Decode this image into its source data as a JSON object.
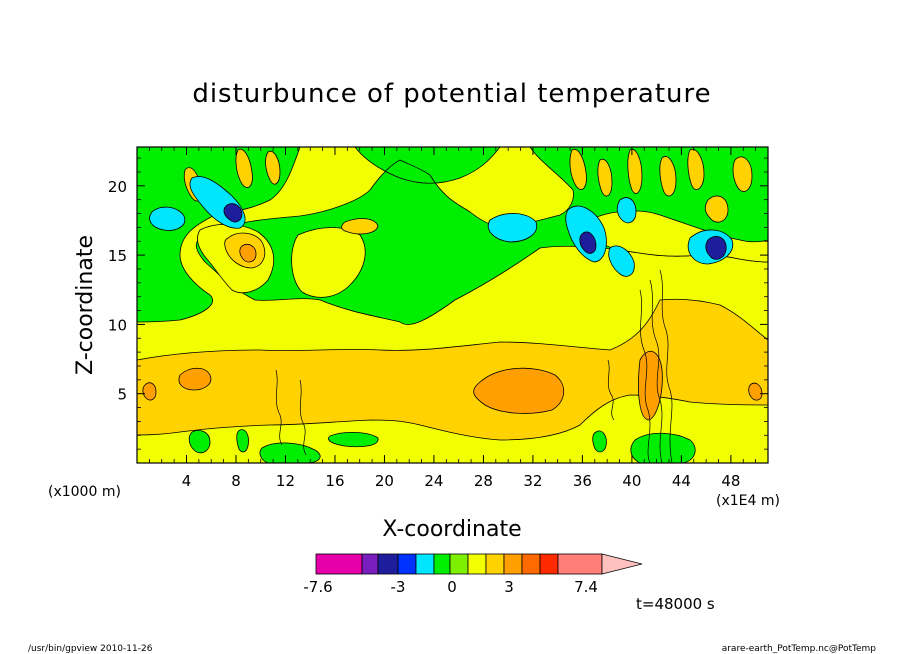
{
  "chart_data": {
    "type": "heatmap",
    "title": "disturbunce of potential temperature",
    "xlabel": "X-coordinate",
    "ylabel": "Z-coordinate",
    "x_units_left": "(x1000 m)",
    "x_units_right": "(x1E4 m)",
    "xlim": [
      0,
      51
    ],
    "ylim": [
      0,
      22.8
    ],
    "xticks": [
      "4",
      "8",
      "12",
      "16",
      "20",
      "24",
      "28",
      "32",
      "36",
      "40",
      "44",
      "48"
    ],
    "yticks": [
      "5",
      "10",
      "15",
      "20"
    ],
    "colorbar": {
      "tick_labels": [
        "-7.6",
        "-3",
        "0",
        "3",
        "7.4"
      ],
      "colors": [
        "#e600aa",
        "#7a1fbf",
        "#1e1e9c",
        "#0032ff",
        "#00e6ff",
        "#00ee00",
        "#7cf000",
        "#f2ff00",
        "#ffd200",
        "#ff9f00",
        "#ff6a00",
        "#ff2a00",
        "#ff7f78",
        "#ffc0c0"
      ]
    },
    "time_label": "t=48000 s",
    "footer_left": "/usr/bin/gpview   2010-11-26",
    "footer_right": "arare-earth_PotTemp.nc@PotTemp",
    "background_value_color": "#f2ff00",
    "band_color": "#ffd200"
  }
}
